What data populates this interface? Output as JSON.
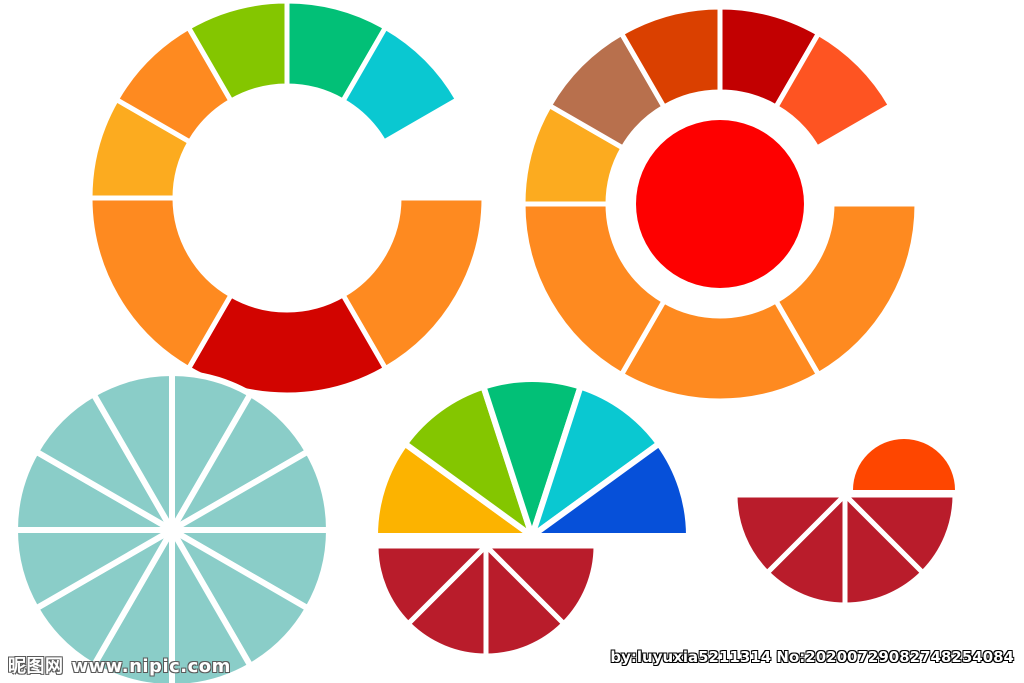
{
  "watermark": {
    "brand": "昵图网",
    "site": "www.nipic.com",
    "credit": "by:luyuxia5211314 No:20200729082748254084"
  },
  "colors": {
    "orange": "#fe8a20",
    "amber": "#fcab1f",
    "green": "#84c600",
    "teal_green": "#02c077",
    "cyan": "#0ac8d1",
    "red": "#d20400",
    "pure_red": "#fe0000",
    "burnt_orange": "#da4000",
    "dark_red": "#c20001",
    "tomato": "#fe5422",
    "brown": "#b8704d",
    "light_teal": "#8acdc8",
    "yellow": "#fcb300",
    "blue": "#0650d9",
    "crimson": "#b91c2b",
    "red_orange": "#fe4600"
  },
  "wheels": [
    {
      "name": "donut-wheel-1",
      "segments": [
        {
          "name": "segment-orange-bottom-right",
          "color": "#fe8a20",
          "sweep": 2
        },
        {
          "name": "segment-red-bottom",
          "color": "#d20400",
          "sweep": 2
        },
        {
          "name": "segment-orange-bottom-left",
          "color": "#fe8a20",
          "sweep": 2
        },
        {
          "name": "segment-amber",
          "color": "#fcab1f",
          "sweep": 1
        },
        {
          "name": "segment-orange-upper-left",
          "color": "#fe8a20",
          "sweep": 1
        },
        {
          "name": "segment-green",
          "color": "#84c600",
          "sweep": 1
        },
        {
          "name": "segment-teal-green",
          "color": "#02c077",
          "sweep": 1
        },
        {
          "name": "segment-cyan",
          "color": "#0ac8d1",
          "sweep": 1
        }
      ]
    },
    {
      "name": "donut-wheel-2",
      "center_color": "#fe0000",
      "segments": [
        {
          "name": "segment-orange-bottom-right",
          "color": "#fe8a20",
          "sweep": 2
        },
        {
          "name": "segment-orange-bottom",
          "color": "#fe8a20",
          "sweep": 2
        },
        {
          "name": "segment-orange-bottom-left",
          "color": "#fe8a20",
          "sweep": 2
        },
        {
          "name": "segment-amber",
          "color": "#fcab1f",
          "sweep": 1
        },
        {
          "name": "segment-brown",
          "color": "#b8704d",
          "sweep": 1
        },
        {
          "name": "segment-burnt-orange",
          "color": "#da4000",
          "sweep": 1
        },
        {
          "name": "segment-dark-red",
          "color": "#c20001",
          "sweep": 1
        },
        {
          "name": "segment-tomato",
          "color": "#fe5422",
          "sweep": 1
        }
      ]
    },
    {
      "name": "pie-wheel-twelve",
      "slices": 12,
      "color": "#8acdc8"
    },
    {
      "name": "fan-upper",
      "segments": [
        {
          "name": "slice-yellow",
          "color": "#fcb300"
        },
        {
          "name": "slice-green",
          "color": "#84c600"
        },
        {
          "name": "slice-teal-green",
          "color": "#02c077"
        },
        {
          "name": "slice-cyan",
          "color": "#0ac8d1"
        },
        {
          "name": "slice-blue",
          "color": "#0650d9"
        }
      ]
    },
    {
      "name": "fan-lower",
      "slices": 4,
      "color": "#b91c2b"
    },
    {
      "name": "small-semicircle",
      "color": "#fe4600"
    },
    {
      "name": "small-fan-lower",
      "slices": 4,
      "color": "#b91c2b"
    }
  ]
}
